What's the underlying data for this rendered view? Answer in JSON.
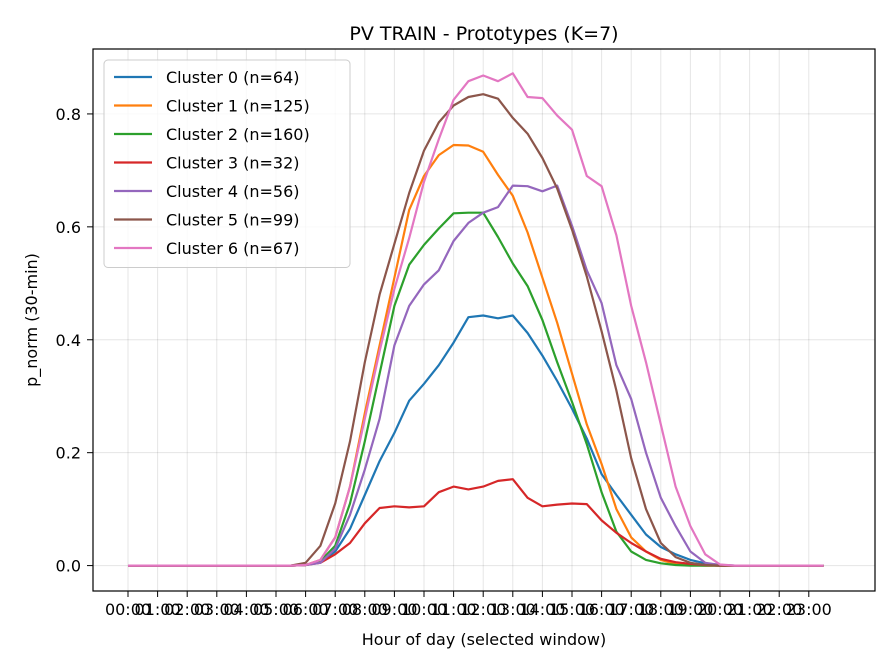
{
  "chart_data": {
    "type": "line",
    "title": "PV TRAIN - Prototypes (K=7)",
    "xlabel": "Hour of day (selected window)",
    "ylabel": "p_norm (30-min)",
    "ylim": [
      -0.045,
      0.915
    ],
    "yticks": [
      0.0,
      0.2,
      0.4,
      0.6,
      0.8
    ],
    "ytick_labels": [
      "0.0",
      "0.2",
      "0.4",
      "0.6",
      "0.8"
    ],
    "xtick_labels": [
      "00:00",
      "01:00",
      "02:00",
      "03:00",
      "04:00",
      "05:00",
      "06:00",
      "07:00",
      "08:00",
      "09:00",
      "10:00",
      "11:00",
      "12:00",
      "13:00",
      "14:00",
      "15:00",
      "16:00",
      "17:00",
      "18:00",
      "19:00",
      "20:00",
      "21:00",
      "22:00",
      "23:00"
    ],
    "grid": true,
    "legend_position": "upper-left",
    "series": [
      {
        "name": "Cluster 0 (n=64)",
        "color": "#1f77b4",
        "values": [
          0,
          0,
          0,
          0,
          0,
          0,
          0,
          0,
          0,
          0,
          0,
          0,
          0.001,
          0.006,
          0.025,
          0.065,
          0.125,
          0.185,
          0.235,
          0.292,
          0.322,
          0.355,
          0.395,
          0.44,
          0.443,
          0.438,
          0.443,
          0.412,
          0.372,
          0.327,
          0.278,
          0.225,
          0.162,
          0.125,
          0.09,
          0.055,
          0.033,
          0.02,
          0.01,
          0.004,
          0.001,
          0,
          0,
          0,
          0,
          0,
          0,
          0
        ]
      },
      {
        "name": "Cluster 1 (n=125)",
        "color": "#ff7f0e",
        "values": [
          0,
          0,
          0,
          0,
          0,
          0,
          0,
          0,
          0,
          0,
          0,
          0,
          0.001,
          0.01,
          0.05,
          0.14,
          0.27,
          0.39,
          0.51,
          0.63,
          0.69,
          0.727,
          0.745,
          0.744,
          0.733,
          0.692,
          0.655,
          0.59,
          0.51,
          0.43,
          0.34,
          0.25,
          0.18,
          0.1,
          0.05,
          0.025,
          0.01,
          0.003,
          0.001,
          0,
          0,
          0,
          0,
          0,
          0,
          0,
          0,
          0
        ]
      },
      {
        "name": "Cluster 2 (n=160)",
        "color": "#2ca02c",
        "values": [
          0,
          0,
          0,
          0,
          0,
          0,
          0,
          0,
          0,
          0,
          0,
          0,
          0.001,
          0.008,
          0.035,
          0.11,
          0.22,
          0.34,
          0.46,
          0.533,
          0.568,
          0.597,
          0.624,
          0.625,
          0.625,
          0.582,
          0.535,
          0.495,
          0.435,
          0.36,
          0.29,
          0.215,
          0.13,
          0.06,
          0.025,
          0.01,
          0.004,
          0.001,
          0,
          0,
          0,
          0,
          0,
          0,
          0,
          0,
          0,
          0
        ]
      },
      {
        "name": "Cluster 3 (n=32)",
        "color": "#d62728",
        "values": [
          0,
          0,
          0,
          0,
          0,
          0,
          0,
          0,
          0,
          0,
          0,
          0,
          0.001,
          0.005,
          0.02,
          0.04,
          0.075,
          0.102,
          0.105,
          0.103,
          0.105,
          0.13,
          0.14,
          0.135,
          0.14,
          0.15,
          0.153,
          0.12,
          0.105,
          0.108,
          0.11,
          0.109,
          0.08,
          0.058,
          0.04,
          0.025,
          0.012,
          0.006,
          0.003,
          0.001,
          0,
          0,
          0,
          0,
          0,
          0,
          0,
          0
        ]
      },
      {
        "name": "Cluster 4 (n=56)",
        "color": "#9467bd",
        "values": [
          0,
          0,
          0,
          0,
          0,
          0,
          0,
          0,
          0,
          0,
          0,
          0,
          0.001,
          0.005,
          0.03,
          0.09,
          0.17,
          0.26,
          0.39,
          0.46,
          0.498,
          0.523,
          0.575,
          0.607,
          0.625,
          0.635,
          0.673,
          0.672,
          0.663,
          0.673,
          0.602,
          0.523,
          0.465,
          0.355,
          0.295,
          0.2,
          0.12,
          0.07,
          0.025,
          0.005,
          0.001,
          0,
          0,
          0,
          0,
          0,
          0,
          0
        ]
      },
      {
        "name": "Cluster 5 (n=99)",
        "color": "#8c564b",
        "values": [
          0,
          0,
          0,
          0,
          0,
          0,
          0,
          0,
          0,
          0,
          0,
          0,
          0.005,
          0.035,
          0.11,
          0.22,
          0.36,
          0.48,
          0.57,
          0.66,
          0.735,
          0.785,
          0.815,
          0.83,
          0.835,
          0.827,
          0.793,
          0.765,
          0.722,
          0.668,
          0.595,
          0.512,
          0.415,
          0.31,
          0.19,
          0.1,
          0.04,
          0.015,
          0.005,
          0.001,
          0,
          0,
          0,
          0,
          0,
          0,
          0,
          0
        ]
      },
      {
        "name": "Cluster 6 (n=67)",
        "color": "#e377c2",
        "values": [
          0,
          0,
          0,
          0,
          0,
          0,
          0,
          0,
          0,
          0,
          0,
          0,
          0.001,
          0.01,
          0.05,
          0.14,
          0.26,
          0.38,
          0.49,
          0.58,
          0.68,
          0.755,
          0.825,
          0.858,
          0.868,
          0.858,
          0.872,
          0.83,
          0.828,
          0.797,
          0.772,
          0.69,
          0.672,
          0.585,
          0.46,
          0.36,
          0.25,
          0.14,
          0.07,
          0.02,
          0.002,
          0,
          0,
          0,
          0,
          0,
          0,
          0
        ]
      }
    ]
  }
}
